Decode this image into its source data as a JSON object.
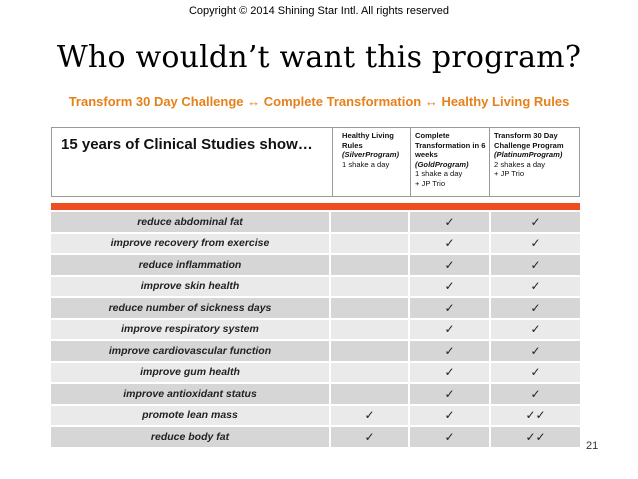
{
  "copyright": "Copyright © 2014 Shining Star Intl. All rights reserved",
  "title": "Who wouldn’t want this program?",
  "subtitle": "Transform 30 Day Challenge ↔ Complete Transformation ↔ Healthy Living Rules",
  "header": {
    "studies_title": "15 years of Clinical Studies show…",
    "columns": [
      {
        "line1": "Healthy Living",
        "line2": "Rules",
        "program": "(SilverProgram)",
        "detail1": "1 shake a day",
        "detail2": ""
      },
      {
        "line1": "Complete",
        "line2": "Transformation in 6 weeks",
        "program": "(GoldProgram)",
        "detail1": "1 shake a day",
        "detail2": "+ JP Trio"
      },
      {
        "line1": "Transform 30 Day",
        "line2": "Challenge Program",
        "program": "(PlatinumProgram)",
        "detail1": "2 shakes a day",
        "detail2": "+ JP Trio"
      }
    ]
  },
  "rows": [
    {
      "label": "reduce abdominal fat",
      "c1": "",
      "c2": "✓",
      "c3": "✓"
    },
    {
      "label": "improve recovery from exercise",
      "c1": "",
      "c2": "✓",
      "c3": "✓"
    },
    {
      "label": "reduce inflammation",
      "c1": "",
      "c2": "✓",
      "c3": "✓"
    },
    {
      "label": "improve skin health",
      "c1": "",
      "c2": "✓",
      "c3": "✓"
    },
    {
      "label": "reduce number of sickness days",
      "c1": "",
      "c2": "✓",
      "c3": "✓"
    },
    {
      "label": "improve respiratory system",
      "c1": "",
      "c2": "✓",
      "c3": "✓"
    },
    {
      "label": "improve cardiovascular function",
      "c1": "",
      "c2": "✓",
      "c3": "✓"
    },
    {
      "label": "improve gum health",
      "c1": "",
      "c2": "✓",
      "c3": "✓"
    },
    {
      "label": "improve antioxidant status",
      "c1": "",
      "c2": "✓",
      "c3": "✓"
    },
    {
      "label": "promote lean mass",
      "c1": "✓",
      "c2": "✓",
      "c3": "✓✓"
    },
    {
      "label": "reduce body fat",
      "c1": "✓",
      "c2": "✓",
      "c3": "✓✓"
    }
  ],
  "page_number": "21",
  "colors": {
    "subtitle": "#E5801A",
    "accent_bar": "#EE4E20",
    "row_dark": "#D6D6D6",
    "row_light": "#EAEAEA"
  }
}
